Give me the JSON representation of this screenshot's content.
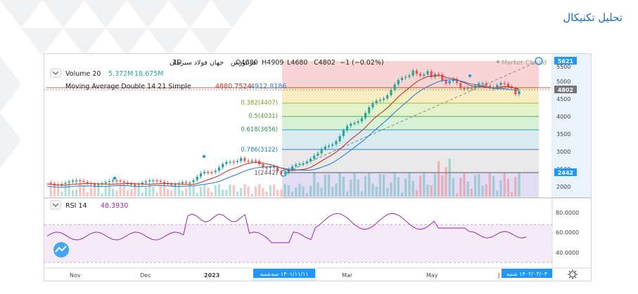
{
  "page": {
    "title": "تحلیل تکنیکال"
  },
  "header": {
    "symbol": "جهان فولاد سیرجان",
    "interval": "1D",
    "exchange": "فرابورس",
    "open": "O4680",
    "high": "H4909",
    "low": "L4680",
    "close": "C4802",
    "change": "−1 (−0.02%)",
    "market_status": "Market Closed"
  },
  "indicators": {
    "volume_label": "Volume 20",
    "volume_v1": "5.372M",
    "volume_v2": "18.675M",
    "ma_label": "Moving Average Double 14 21 Simple",
    "ma_v1": "4880.7524",
    "ma_v2": "4912.8186",
    "rsi_label": "RSI 14",
    "rsi_value": "48.3930"
  },
  "fib_levels": [
    {
      "label": "0.382(4407)",
      "price": 4407
    },
    {
      "label": "0.5(4031)",
      "price": 4031
    },
    {
      "label": "0.618(3656)",
      "price": 3656
    },
    {
      "label": "0.786(3122)",
      "price": 3122
    },
    {
      "label": "1(2442)",
      "price": 2442
    }
  ],
  "price_axis": {
    "ticks": [
      "5500",
      "5000",
      "4500",
      "4000",
      "3500",
      "3000",
      "2500",
      "2000"
    ],
    "high_label": "5621",
    "last_label": "4802",
    "low_label": "2442"
  },
  "rsi_axis": {
    "ticks": [
      "80.0000",
      "60.0000",
      "40.0000"
    ]
  },
  "time_axis": {
    "ticks": [
      "Nov",
      "Dec",
      "2023",
      "Mar",
      "May",
      "J"
    ],
    "start_date": "۱۴۰۱/۱۱/۱۱ سه‌شنبه",
    "end_date": "۱۴۰۲/۰۳/۰۳ شنبه"
  },
  "colors": {
    "up": "#26a69a",
    "down": "#ef5350",
    "ma_fast": "#c0392b",
    "ma_slow": "#2f7fd0",
    "rsi": "#9c27b0",
    "accent": "#2196f3"
  }
}
